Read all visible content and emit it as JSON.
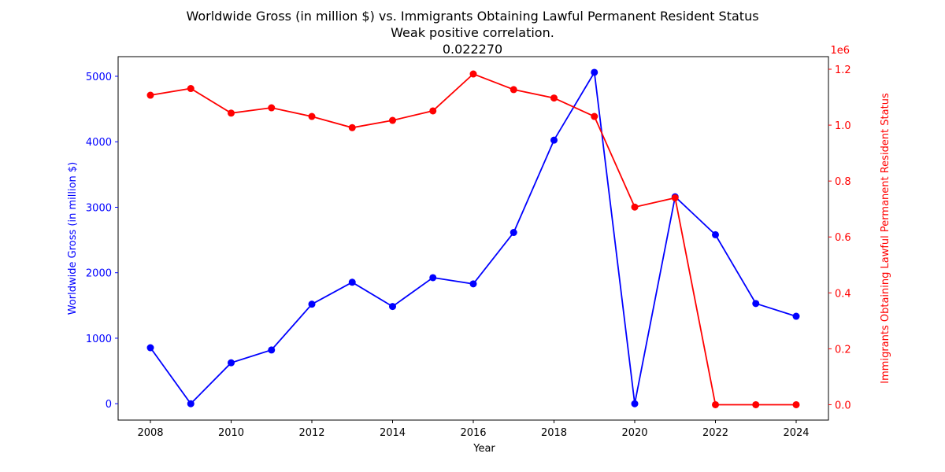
{
  "chart_data": {
    "type": "line",
    "title": "Worldwide Gross (in million $) vs. Immigrants Obtaining Lawful Permanent Resident Status",
    "subtitle": "Weak positive correlation.",
    "correlation": "0.022270",
    "xlabel": "Year",
    "ylabel_left": "Worldwide Gross (in million $)",
    "ylabel_right": "Immigrants Obtaining Lawful Permanent Resident Status",
    "right_offset_label": "1e6",
    "x": [
      2008,
      2009,
      2010,
      2011,
      2012,
      2013,
      2014,
      2015,
      2016,
      2017,
      2018,
      2019,
      2020,
      2021,
      2022,
      2023,
      2024
    ],
    "x_ticks": [
      "2008",
      "2010",
      "2012",
      "2014",
      "2016",
      "2018",
      "2020",
      "2022",
      "2024"
    ],
    "y_left_ticks": [
      "0",
      "1000",
      "2000",
      "3000",
      "4000",
      "5000"
    ],
    "y_right_ticks": [
      "0.0",
      "0.2",
      "0.4",
      "0.6",
      "0.8",
      "1.0",
      "1.2"
    ],
    "xlim": [
      2007.2,
      2024.8
    ],
    "ylim_left": [
      -250,
      5300
    ],
    "ylim_right": [
      -0.055,
      1.245
    ],
    "grid": false,
    "series": [
      {
        "axis": "left",
        "color": "#0000ff",
        "values": [
          855,
          0,
          625,
          820,
          1520,
          1855,
          1485,
          1925,
          1830,
          2615,
          4025,
          5060,
          0,
          3160,
          2580,
          1530,
          1335
        ]
      },
      {
        "axis": "right",
        "color": "#ff0000",
        "values": [
          1.107,
          1.131,
          1.043,
          1.062,
          1.031,
          0.991,
          1.017,
          1.051,
          1.183,
          1.127,
          1.097,
          1.031,
          0.707,
          0.74,
          0.0,
          0.0,
          0.0
        ]
      }
    ]
  }
}
